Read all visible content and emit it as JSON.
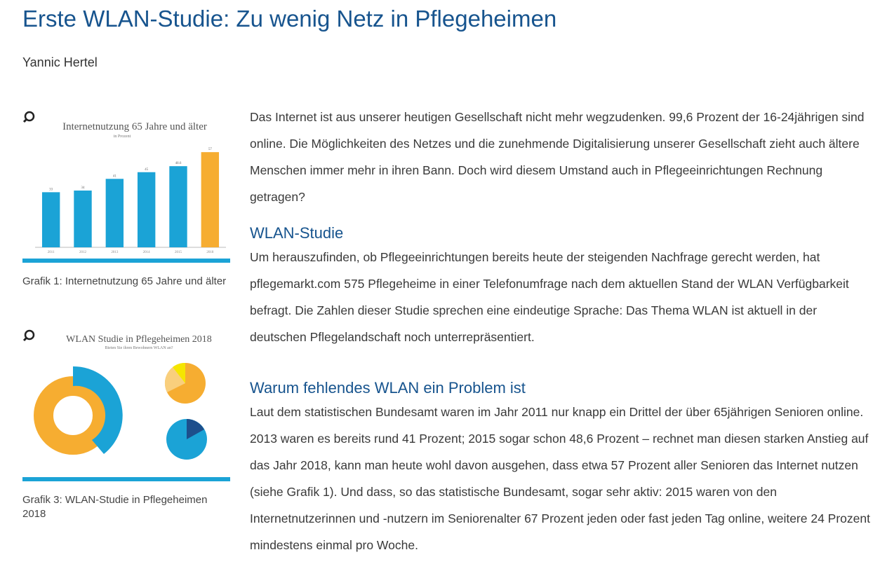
{
  "header": {
    "title": "Erste WLAN-Studie: Zu wenig Netz in Pflegeheimen",
    "author": "Yannic Hertel"
  },
  "figures": [
    {
      "chart": {
        "type": "bar",
        "title": "Internetnutzung 65 Jahre und älter",
        "subtitle": "in Prozent",
        "categories": [
          "2011",
          "2012",
          "2013",
          "2014",
          "2015",
          "2018"
        ],
        "values": [
          33,
          34,
          41,
          45,
          48.6,
          57
        ],
        "colors": [
          "#1ba3d6",
          "#1ba3d6",
          "#1ba3d6",
          "#1ba3d6",
          "#1ba3d6",
          "#f6ad31"
        ],
        "ylim": [
          0,
          60
        ]
      },
      "caption": "Grafik 1: Internetnutzung 65 Jahre und älter"
    },
    {
      "chart": {
        "title": "WLAN Studie in Pflegeheimen 2018",
        "subtitle": "Bieten Sie ihren Bewohnern WLAN an?"
      },
      "caption": "Grafik 3: WLAN-Studie in Pflegeheimen 2018"
    }
  ],
  "article": {
    "intro": "Das Internet ist aus unserer heutigen Gesellschaft nicht mehr wegzudenken. 99,6 Prozent der 16-24jährigen sind online. Die Möglichkeiten des Netzes und die zunehmende Digitalisierung unserer Gesellschaft zieht auch ältere Menschen immer mehr in ihren Bann. Doch wird diesem Umstand auch in Pflegeeinrichtungen Rechnung getragen?",
    "sections": [
      {
        "heading": "WLAN-Studie",
        "text": "Um herauszufinden, ob Pflegeeinrichtungen bereits heute der steigenden Nachfrage gerecht werden, hat pflegemarkt.com 575 Pflegeheime in einer Telefonumfrage nach dem aktuellen Stand der WLAN Verfügbarkeit befragt. Die Zahlen dieser Studie sprechen eine eindeutige Sprache: Das Thema WLAN ist aktuell in der deutschen Pflegelandschaft noch unterrepräsentiert."
      },
      {
        "heading": "Warum fehlendes WLAN ein Problem ist",
        "text": "Laut dem statistischen Bundesamt waren im Jahr 2011 nur knapp ein Drittel der über 65jährigen Senioren online. 2013 waren es bereits rund 41 Prozent; 2015 sogar schon 48,6 Prozent – rechnet man diesen starken Anstieg auf das Jahr 2018, kann man heute wohl davon ausgehen, dass etwa 57 Prozent aller Senioren das Internet nutzen (siehe Grafik 1). Und dass, so das statistische Bundesamt, sogar sehr aktiv: 2015 waren von den Internetnutzerinnen und -nutzern im Seniorenalter 67 Prozent jeden oder fast jeden Tag online, weitere 24 Prozent mindestens einmal pro Woche."
      }
    ]
  }
}
